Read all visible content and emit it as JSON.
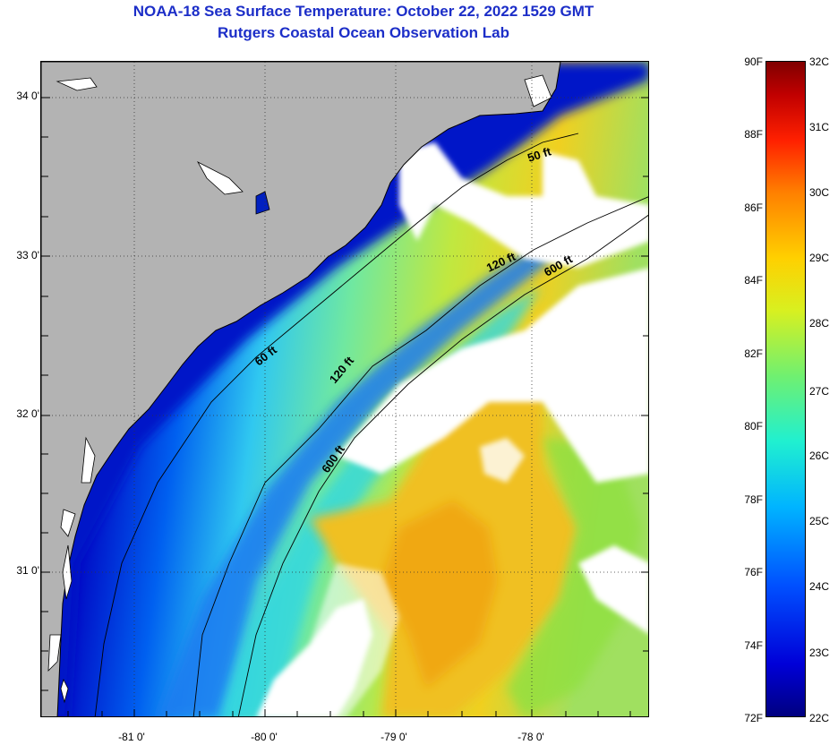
{
  "title_line1": "NOAA-18 Sea Surface Temperature:  October 22, 2022 1529 GMT",
  "title_line2": "Rutgers Coastal Ocean Observation Lab",
  "y_ticks": [
    "34 0'",
    "33 0'",
    "32 0'",
    "31 0'"
  ],
  "x_ticks": [
    "-81 0'",
    "-80 0'",
    "-79 0'",
    "-78 0'"
  ],
  "contours": {
    "c50_north": "50 ft",
    "c60_south": "60 ft",
    "c120_north": "120 ft",
    "c120_south": "120 ft",
    "c600_north": "600 ft",
    "c600_south": "600 ft"
  },
  "colorbar": {
    "fahrenheit": [
      "90F",
      "88F",
      "86F",
      "84F",
      "82F",
      "80F",
      "78F",
      "76F",
      "74F",
      "72F"
    ],
    "celsius": [
      "32C",
      "31C",
      "30C",
      "29C",
      "28C",
      "27C",
      "26C",
      "25C",
      "24C",
      "23C",
      "22C"
    ],
    "range_c": [
      22,
      32
    ]
  },
  "colors": {
    "title": "#1c2ec8",
    "land": "#b3b3b3",
    "cloud": "#ffffff"
  }
}
